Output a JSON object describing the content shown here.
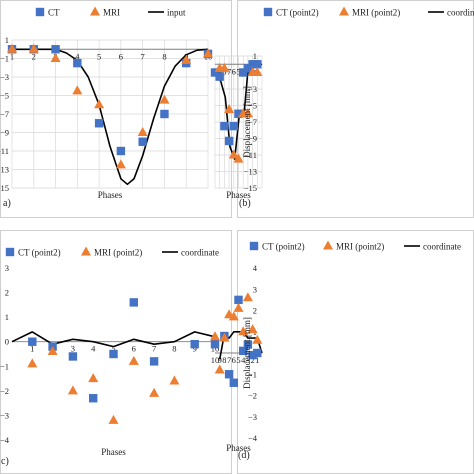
{
  "figure": {
    "panels": [
      {
        "id": "a",
        "tag": "a)",
        "xlabel": "Phases",
        "ylabel": "",
        "legend": [
          "CT",
          "MRI",
          "input"
        ]
      },
      {
        "id": "b",
        "tag": "(b)",
        "xlabel": "Phases",
        "ylabel": "Displacement [mm]",
        "legend": [
          "CT (point2)",
          "MRI (point2)",
          "coordinate"
        ]
      },
      {
        "id": "c",
        "tag": "c)",
        "xlabel": "Phases",
        "ylabel": "",
        "legend": [
          "CT (point2)",
          "MRI (point2)",
          "coordinate"
        ]
      },
      {
        "id": "d",
        "tag": "(d)",
        "xlabel": "Phases",
        "ylabel": "Displacement [mm]",
        "legend": [
          "CT (point2)",
          "MRI (point2)",
          "coordinate"
        ]
      }
    ]
  },
  "colors": {
    "ct": "#4472c4",
    "mri": "#ed7d31",
    "line": "#000000",
    "grid": "#d9d9d9"
  },
  "chart_data": [
    {
      "type": "scatter",
      "x": [
        1,
        2,
        3,
        4,
        5,
        6,
        7,
        8,
        9,
        10
      ],
      "series": [
        {
          "name": "CT",
          "marker": "square",
          "values": [
            0,
            0,
            0,
            -1.5,
            -8,
            -11,
            -10,
            -7,
            -1.5,
            -0.5
          ]
        },
        {
          "name": "MRI",
          "marker": "triangle",
          "values": [
            0,
            0,
            -1,
            -4.5,
            -6,
            -12.5,
            -9,
            -5.5,
            -1.2,
            -0.5
          ]
        },
        {
          "name": "input",
          "marker": "line",
          "curve": [
            [
              1,
              0
            ],
            [
              2,
              0
            ],
            [
              3,
              0
            ],
            [
              3.5,
              -0.4
            ],
            [
              4,
              -1.2
            ],
            [
              4.5,
              -3
            ],
            [
              5,
              -6
            ],
            [
              5.5,
              -10.5
            ],
            [
              6,
              -14
            ],
            [
              6.3,
              -14.6
            ],
            [
              6.6,
              -14
            ],
            [
              7,
              -11.5
            ],
            [
              7.5,
              -7.5
            ],
            [
              8,
              -4
            ],
            [
              8.5,
              -1.8
            ],
            [
              9,
              -0.6
            ],
            [
              9.5,
              -0.1
            ],
            [
              10,
              0
            ]
          ]
        }
      ],
      "xlabel": "Phases",
      "ylabel": "",
      "yticks": [
        1,
        -1,
        -3,
        -5,
        -7,
        -9,
        -11,
        -13,
        -15
      ],
      "ylim": [
        -15,
        1
      ],
      "xlim": [
        1,
        10
      ],
      "grid": true,
      "legend_position": "top"
    },
    {
      "type": "scatter",
      "x": [
        1,
        2,
        3,
        4,
        5,
        6,
        7,
        8,
        9,
        10
      ],
      "series": [
        {
          "name": "CT (point2)",
          "marker": "square",
          "values": [
            0,
            0,
            -0.5,
            -1,
            -6,
            -7.5,
            -9.3,
            -7.5,
            -1.5,
            -1
          ]
        },
        {
          "name": "MRI (point2)",
          "marker": "triangle",
          "values": [
            -1,
            -1,
            -6,
            -6,
            -11.5,
            -11,
            -5.5,
            -0.5,
            -0.5,
            null
          ]
        },
        {
          "name": "coordinate",
          "marker": "line",
          "curve": [
            [
              0,
              0
            ],
            [
              1,
              -0.2
            ],
            [
              2,
              -0.5
            ],
            [
              3,
              -0.8
            ],
            [
              3.8,
              -6
            ],
            [
              4.8,
              -6
            ],
            [
              5.8,
              -11.5
            ],
            [
              6.8,
              -10
            ],
            [
              7.8,
              -4
            ],
            [
              8.8,
              -2
            ],
            [
              9.8,
              -1.5
            ]
          ]
        }
      ],
      "xlabel": "Phases",
      "ylabel": "Displacement [mm]",
      "yticks": [
        1,
        -1,
        -3,
        -5,
        -7,
        -9,
        -11,
        -13,
        -15
      ],
      "ylim": [
        -15,
        1
      ],
      "xlim": [
        0,
        10
      ],
      "grid": true,
      "legend_position": "top"
    },
    {
      "type": "scatter",
      "x": [
        1,
        2,
        3,
        4,
        5,
        6,
        7,
        8,
        9,
        10
      ],
      "series": [
        {
          "name": "CT (point2)",
          "marker": "square",
          "values": [
            0,
            -0.2,
            -0.6,
            -2.3,
            -0.5,
            1.6,
            -0.8,
            null,
            -0.1,
            -0.1
          ]
        },
        {
          "name": "MRI (point2)",
          "marker": "triangle",
          "values": [
            -0.9,
            -0.4,
            -2.0,
            -1.5,
            -3.2,
            -0.8,
            -2.1,
            -1.6,
            null,
            0.2
          ]
        },
        {
          "name": "coordinate",
          "marker": "line",
          "curve": [
            [
              0,
              0
            ],
            [
              1,
              0.4
            ],
            [
              2,
              -0.1
            ],
            [
              3,
              0.1
            ],
            [
              4,
              0
            ],
            [
              5,
              -0.2
            ],
            [
              6,
              0.1
            ],
            [
              7,
              -0.1
            ],
            [
              8,
              0
            ],
            [
              9,
              0.4
            ],
            [
              10,
              0.2
            ]
          ]
        }
      ],
      "xlabel": "Phases",
      "ylabel": "",
      "yticks": [
        3,
        2,
        1,
        0,
        -1,
        -2,
        -3,
        -4
      ],
      "ylim": [
        -4,
        3
      ],
      "xlim": [
        0,
        10
      ],
      "grid": false,
      "legend_position": "top"
    },
    {
      "type": "scatter",
      "x": [
        1,
        2,
        3,
        4,
        5,
        6,
        7,
        8,
        9,
        10
      ],
      "series": [
        {
          "name": "CT (point2)",
          "marker": "square",
          "values": [
            0,
            -0.1,
            0.4,
            0.1,
            2.5,
            -1.4,
            -1.0,
            0.8,
            null,
            null
          ]
        },
        {
          "name": "MRI (point2)",
          "marker": "triangle",
          "values": [
            0.6,
            1.1,
            2.6,
            1.0,
            2.1,
            1.7,
            1.8,
            0.7,
            -0.8,
            null
          ]
        },
        {
          "name": "coordinate",
          "marker": "line",
          "curve": [
            [
              0,
              0
            ],
            [
              1,
              0.7
            ],
            [
              2,
              0.7
            ],
            [
              3,
              0.7
            ],
            [
              4,
              1.0
            ],
            [
              5,
              1.0
            ],
            [
              6,
              1.0
            ],
            [
              7,
              0.7
            ],
            [
              8,
              0.9
            ],
            [
              9,
              -0.3
            ]
          ]
        }
      ],
      "xlabel": "Phases",
      "ylabel": "Displacement [mm]",
      "yticks": [
        4,
        3,
        2,
        1,
        0,
        -1,
        -2,
        -3,
        -4
      ],
      "ylim": [
        -4,
        4
      ],
      "xlim": [
        0,
        10
      ],
      "grid": false,
      "legend_position": "top"
    }
  ]
}
